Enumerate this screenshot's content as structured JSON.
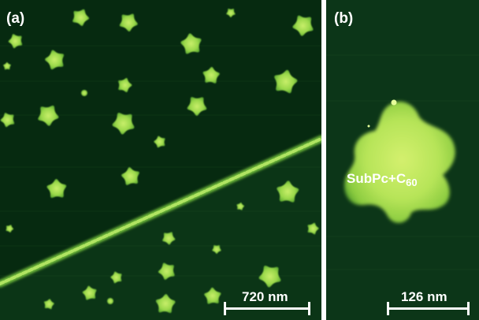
{
  "panel_a": {
    "label": "(a)",
    "scale_bar": "720 nm"
  },
  "panel_b": {
    "label": "(b)",
    "scale_bar": "126 nm",
    "island_label": "SubPc+C",
    "island_label_subscript": "60"
  },
  "colors": {
    "substrate_dark": "#062a10",
    "substrate_light": "#0d3a18",
    "island": "#9ad84a",
    "island_core": "#c8ee6a",
    "step_edge": "#a6e05a"
  }
}
